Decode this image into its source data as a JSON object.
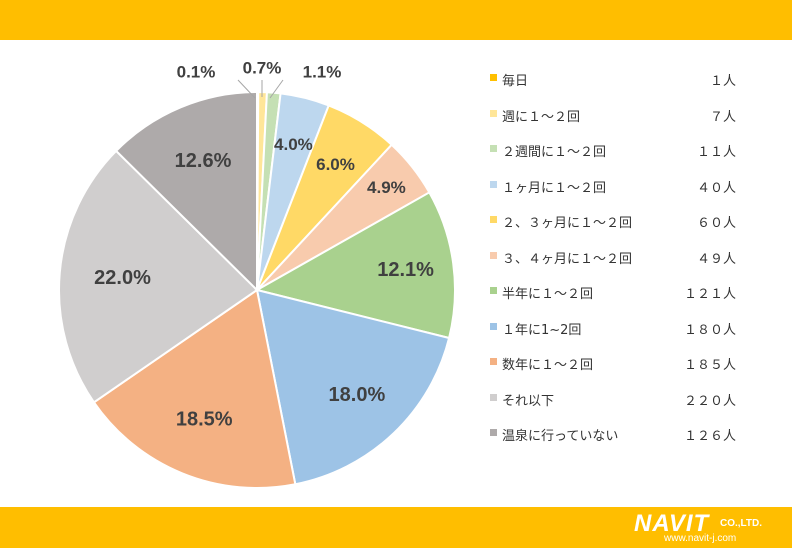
{
  "chart_data": {
    "type": "pie",
    "start_angle_deg": 0,
    "direction": "clockwise",
    "categories": [
      "毎日",
      "週に１～２回",
      "２週間に１～２回",
      "１ヶ月に１～２回",
      "２、３ヶ月に１～２回",
      "３、４ヶ月に１～２回",
      "半年に１～２回",
      "１年に1~2回",
      "数年に１～２回",
      "それ以下",
      "温泉に行っていない"
    ],
    "values": [
      1,
      7,
      11,
      40,
      60,
      49,
      121,
      180,
      185,
      220,
      126
    ],
    "percent_labels": [
      "0.1%",
      "0.7%",
      "1.1%",
      "4.0%",
      "6.0%",
      "4.9%",
      "12.1%",
      "18.0%",
      "18.5%",
      "22.0%",
      "12.6%"
    ],
    "counts": [
      "１人",
      "７人",
      "１１人",
      "４０人",
      "６０人",
      "４９人",
      "１２１人",
      "１８０人",
      "１８５人",
      "２２０人",
      "１２６人"
    ],
    "colors": [
      "#FFC000",
      "#FFE699",
      "#C5E0B4",
      "#BDD7EE",
      "#FFD966",
      "#F8CBAD",
      "#A9D18E",
      "#9DC3E6",
      "#F4B183",
      "#D0CECE",
      "#AEAAAA"
    ],
    "legend_position": "right"
  },
  "logo": {
    "brand": "NAVIT",
    "suffix": "CO.,LTD.",
    "url": "www.navit-j.com"
  },
  "theme": {
    "band_color": "#FFBE00"
  }
}
